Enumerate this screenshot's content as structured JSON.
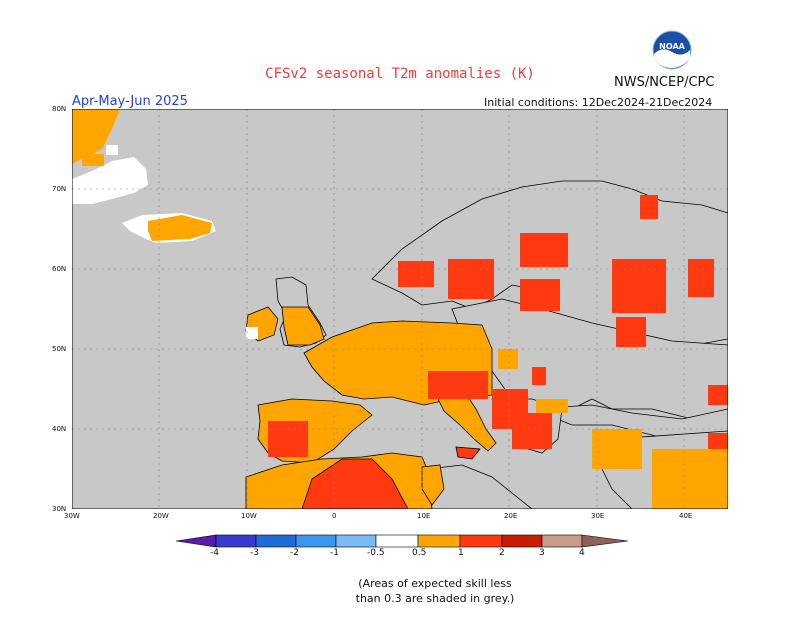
{
  "header": {
    "title": "CFSv2 seasonal T2m anomalies (K)",
    "org": "NWS/NCEP/CPC",
    "period": "Apr-May-Jun 2025",
    "initial_conditions": "Initial conditions: 12Dec2024-21Dec2024",
    "logo_text": "NOAA"
  },
  "map": {
    "lat_labels": [
      "80N",
      "70N",
      "60N",
      "50N",
      "40N",
      "30N"
    ],
    "lon_labels": [
      "30W",
      "20W",
      "10W",
      "0",
      "10E",
      "20E",
      "30E",
      "40E"
    ],
    "colors": {
      "sea_grey": "#c8c8c8",
      "neutral": "#ffffff",
      "orange": "#ffa500",
      "red_orange": "#ff3a10",
      "coast": "#000000"
    }
  },
  "colorbar": {
    "labels": [
      "-4",
      "-3",
      "-2",
      "-1",
      "-0.5",
      "0.5",
      "1",
      "2",
      "3",
      "4"
    ],
    "colors": [
      "#5a1ca8",
      "#3a3ad0",
      "#1e6cd8",
      "#3c96ee",
      "#7ab8f8",
      "#ffffff",
      "#ffa500",
      "#ff3a10",
      "#c81e00",
      "#9a1010",
      "#c89c8c",
      "#906058"
    ]
  },
  "note": {
    "line1": "(Areas of expected skill less",
    "line2": "than 0.3 are shaded in grey.)"
  }
}
